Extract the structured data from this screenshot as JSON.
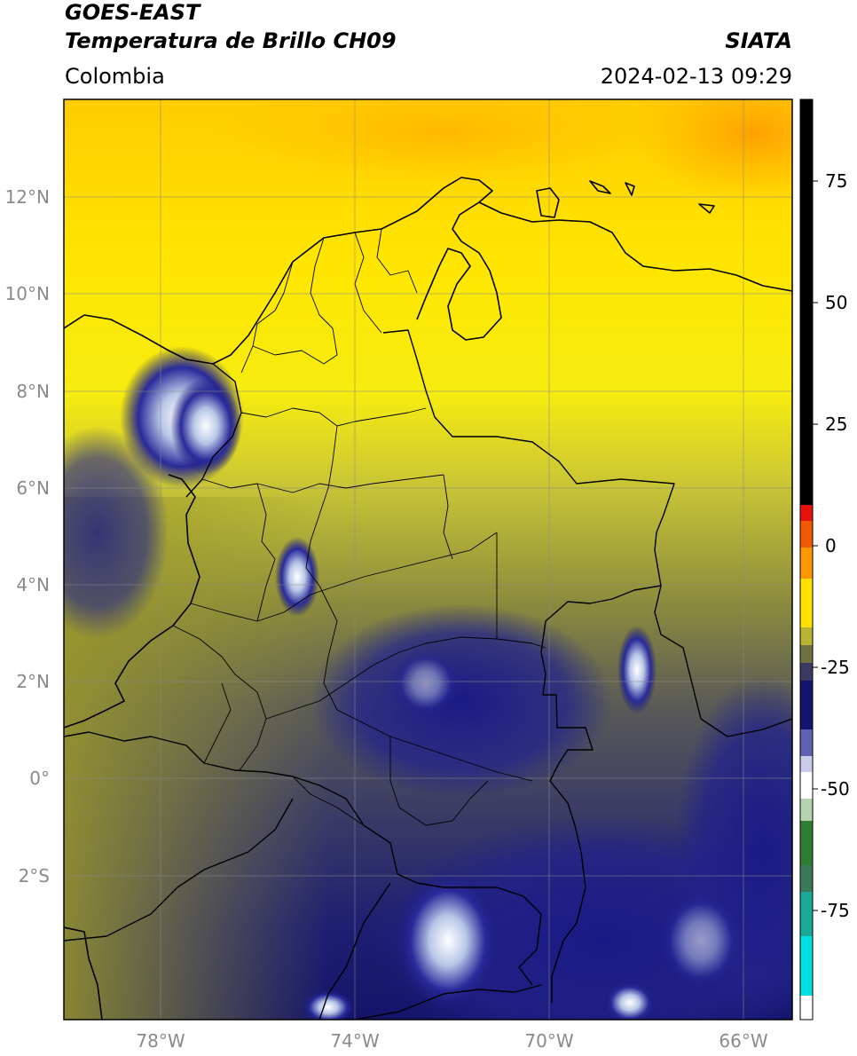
{
  "header": {
    "title_line1": "GOES-EAST",
    "title_line2": "Temperatura de Brillo CH09",
    "region": "Colombia",
    "source": "SIATA",
    "datetime": "2024-02-13 09:29"
  },
  "map": {
    "lat_labels": [
      "12°N",
      "10°N",
      "8°N",
      "6°N",
      "4°N",
      "2°N",
      "0°",
      "2°S"
    ],
    "lon_labels": [
      "78°W",
      "74°W",
      "70°W",
      "66°W"
    ],
    "lon_range": [
      -80.0,
      -65.0
    ],
    "lat_range": [
      -5.0,
      14.0
    ],
    "grid": true
  },
  "colorbar": {
    "tick_labels": [
      "75",
      "50",
      "25",
      "0",
      "-25",
      "-50",
      "-75"
    ],
    "colors": {
      "black": "#000000",
      "red": "#e8120c",
      "orange": "#ff9800",
      "yellow": "#ffee00",
      "olive": "#8c8c3a",
      "navy": "#14146e",
      "white": "#ffffff",
      "green": "#2e7d32",
      "cyan": "#00e5e5"
    }
  }
}
